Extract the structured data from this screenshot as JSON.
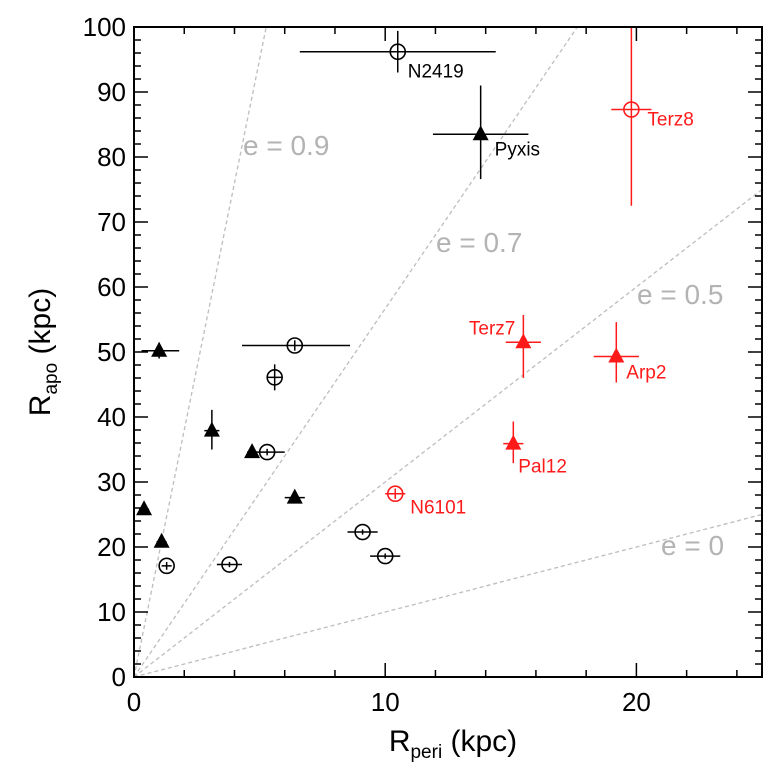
{
  "chart_data": {
    "type": "scatter",
    "xlabel": {
      "main": "R",
      "sub": "peri",
      "unit": " (kpc)"
    },
    "ylabel": {
      "main": "R",
      "sub": "apo",
      "unit": " (kpc)"
    },
    "xlim": [
      0,
      25
    ],
    "ylim": [
      0,
      100
    ],
    "x_ticks": [
      0,
      10,
      20
    ],
    "y_ticks": [
      0,
      10,
      20,
      30,
      40,
      50,
      60,
      70,
      80,
      90,
      100
    ],
    "grid": false,
    "eccentricity_lines": [
      {
        "e": 0.9,
        "label": "e = 0.9"
      },
      {
        "e": 0.7,
        "label": "e = 0.7"
      },
      {
        "e": 0.5,
        "label": "e = 0.5"
      },
      {
        "e": 0.0,
        "label": "e = 0"
      }
    ],
    "colors": {
      "black": "#000000",
      "red": "#ff1a1a",
      "gray": "#b3b3b3",
      "dashed": "#bdbdbd"
    },
    "points": [
      {
        "x": 10.5,
        "y": 96.2,
        "marker": "circle",
        "color": "black",
        "xerr": [
          3.9,
          3.9
        ],
        "yerr": [
          3.2,
          3.2
        ],
        "label": "N2419"
      },
      {
        "x": 13.8,
        "y": 83.5,
        "marker": "triangle",
        "color": "black",
        "xerr": [
          1.9,
          1.9
        ],
        "yerr": [
          6.9,
          7.5
        ],
        "label": "Pyxis"
      },
      {
        "x": 19.8,
        "y": 87.3,
        "marker": "circle",
        "color": "red",
        "xerr": [
          0.8,
          0.8
        ],
        "yerr": [
          14.8,
          12.7
        ],
        "label": "Terz8"
      },
      {
        "x": 15.5,
        "y": 51.5,
        "marker": "triangle",
        "color": "red",
        "xerr": [
          0.7,
          0.7
        ],
        "yerr": [
          5.5,
          4.2
        ],
        "label": "Terz7"
      },
      {
        "x": 19.2,
        "y": 49.3,
        "marker": "triangle",
        "color": "red",
        "xerr": [
          0.9,
          0.9
        ],
        "yerr": [
          4.0,
          5.3
        ],
        "label": "Arp2"
      },
      {
        "x": 15.1,
        "y": 35.9,
        "marker": "triangle",
        "color": "red",
        "xerr": [
          0.4,
          0.4
        ],
        "yerr": [
          3.0,
          3.4
        ],
        "label": "Pal12"
      },
      {
        "x": 10.4,
        "y": 28.2,
        "marker": "circle",
        "color": "red",
        "xerr": [
          0.4,
          0.4
        ],
        "yerr": [
          0.8,
          0.8
        ],
        "label": "N6101"
      },
      {
        "x": 1.0,
        "y": 50.2,
        "marker": "triangle",
        "color": "black",
        "xerr": [
          0.7,
          0.8
        ],
        "yerr": [
          1.2,
          1.2
        ]
      },
      {
        "x": 6.4,
        "y": 51.0,
        "marker": "circle",
        "color": "black",
        "xerr": [
          2.1,
          2.2
        ],
        "yerr": [
          0.8,
          0.8
        ]
      },
      {
        "x": 5.6,
        "y": 46.1,
        "marker": "circle",
        "color": "black",
        "xerr": [
          0.3,
          0.3
        ],
        "yerr": [
          2.0,
          2.0
        ]
      },
      {
        "x": 3.1,
        "y": 37.9,
        "marker": "triangle",
        "color": "black",
        "xerr": [
          0.3,
          0.3
        ],
        "yerr": [
          2.9,
          3.2
        ]
      },
      {
        "x": 4.7,
        "y": 34.6,
        "marker": "triangle",
        "color": "black",
        "xerr": [
          0.2,
          0.2
        ],
        "yerr": [
          0.5,
          0.5
        ]
      },
      {
        "x": 5.3,
        "y": 34.6,
        "marker": "circle",
        "color": "black",
        "xerr": [
          0.7,
          0.7
        ],
        "yerr": [
          0.5,
          0.5
        ]
      },
      {
        "x": 6.4,
        "y": 27.6,
        "marker": "triangle",
        "color": "black",
        "xerr": [
          0.4,
          0.4
        ],
        "yerr": [
          0.4,
          0.4
        ]
      },
      {
        "x": 0.4,
        "y": 25.8,
        "marker": "triangle",
        "color": "black",
        "xerr": [
          0.2,
          0.2
        ],
        "yerr": [
          0.6,
          0.6
        ]
      },
      {
        "x": 1.1,
        "y": 20.8,
        "marker": "triangle",
        "color": "black",
        "xerr": [
          0.2,
          0.2
        ],
        "yerr": [
          0.6,
          0.6
        ]
      },
      {
        "x": 1.3,
        "y": 17.1,
        "marker": "circle",
        "color": "black",
        "xerr": [
          0.2,
          0.2
        ],
        "yerr": [
          0.6,
          0.6
        ]
      },
      {
        "x": 3.8,
        "y": 17.3,
        "marker": "circle",
        "color": "black",
        "xerr": [
          0.5,
          0.5
        ],
        "yerr": [
          0.4,
          0.4
        ]
      },
      {
        "x": 9.1,
        "y": 22.3,
        "marker": "circle",
        "color": "black",
        "xerr": [
          0.6,
          0.6
        ],
        "yerr": [
          0.4,
          0.4
        ]
      },
      {
        "x": 10.0,
        "y": 18.6,
        "marker": "circle",
        "color": "black",
        "xerr": [
          0.6,
          0.6
        ],
        "yerr": [
          0.4,
          0.4
        ]
      }
    ]
  }
}
